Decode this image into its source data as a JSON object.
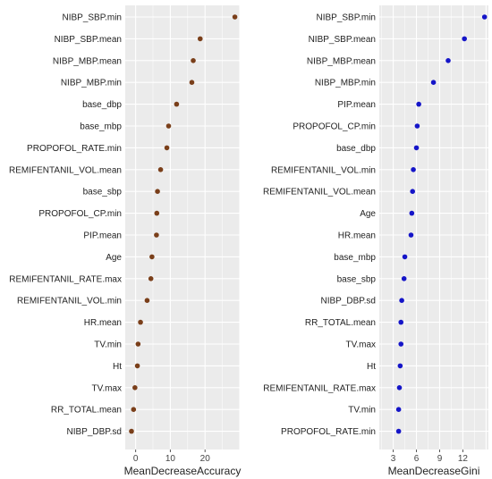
{
  "chart_data": [
    {
      "type": "scatter",
      "xlabel": "MeanDecreaseAccuracy",
      "xticks": [
        0,
        10,
        20
      ],
      "xlim": [
        -3,
        30
      ],
      "grid": true,
      "point_color": "#7a3f1a",
      "categories": [
        "NIBP_SBP.min",
        "NIBP_SBP.mean",
        "NIBP_MBP.mean",
        "NIBP_MBP.min",
        "base_dbp",
        "base_mbp",
        "PROPOFOL_RATE.min",
        "REMIFENTANIL_VOL.mean",
        "base_sbp",
        "PROPOFOL_CP.min",
        "PIP.mean",
        "Age",
        "REMIFENTANIL_RATE.max",
        "REMIFENTANIL_VOL.min",
        "HR.mean",
        "TV.min",
        "Ht",
        "TV.max",
        "RR_TOTAL.mean",
        "NIBP_DBP.sd"
      ],
      "values": [
        28.6,
        18.6,
        16.6,
        16.2,
        11.8,
        9.5,
        9.0,
        7.2,
        6.3,
        6.1,
        6.0,
        4.7,
        4.4,
        3.3,
        1.4,
        0.7,
        0.5,
        -0.2,
        -0.6,
        -1.2
      ]
    },
    {
      "type": "scatter",
      "xlabel": "MeanDecreaseGini",
      "xticks": [
        3,
        6,
        9,
        12
      ],
      "xlim": [
        1.2,
        15.3
      ],
      "grid": true,
      "point_color": "#1515c8",
      "categories": [
        "NIBP_SBP.min",
        "NIBP_SBP.mean",
        "NIBP_MBP.mean",
        "NIBP_MBP.min",
        "PIP.mean",
        "PROPOFOL_CP.min",
        "base_dbp",
        "REMIFENTANIL_VOL.min",
        "REMIFENTANIL_VOL.mean",
        "Age",
        "HR.mean",
        "base_mbp",
        "base_sbp",
        "NIBP_DBP.sd",
        "RR_TOTAL.mean",
        "TV.max",
        "Ht",
        "REMIFENTANIL_RATE.max",
        "TV.min",
        "PROPOFOL_RATE.min"
      ],
      "values": [
        14.8,
        12.2,
        10.1,
        8.2,
        6.3,
        6.1,
        6.0,
        5.6,
        5.5,
        5.4,
        5.3,
        4.5,
        4.4,
        4.1,
        4.0,
        4.0,
        3.9,
        3.8,
        3.7,
        3.7
      ]
    }
  ]
}
